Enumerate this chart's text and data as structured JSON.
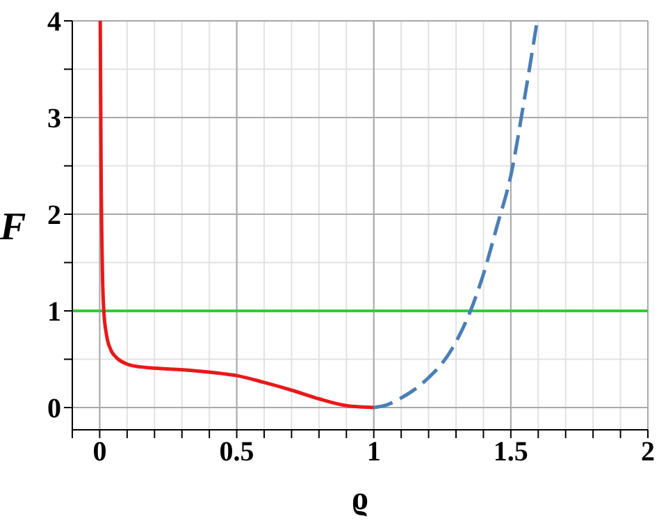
{
  "chart_data": {
    "type": "line",
    "xlabel": "ϱ",
    "ylabel": "F",
    "xlim": [
      -0.1,
      2
    ],
    "ylim": [
      -0.23,
      4
    ],
    "xticks": [
      {
        "value": -0.1,
        "label": null
      },
      0,
      {
        "value": 0.1,
        "label": null
      },
      {
        "value": 0.2,
        "label": null
      },
      {
        "value": 0.3,
        "label": null
      },
      {
        "value": 0.4,
        "label": null
      },
      0.5,
      {
        "value": 0.6,
        "label": null
      },
      {
        "value": 0.7,
        "label": null
      },
      {
        "value": 0.8,
        "label": null
      },
      {
        "value": 0.9,
        "label": null
      },
      1,
      {
        "value": 1.1,
        "label": null
      },
      {
        "value": 1.2,
        "label": null
      },
      {
        "value": 1.3,
        "label": null
      },
      {
        "value": 1.4,
        "label": null
      },
      1.5,
      {
        "value": 1.6,
        "label": null
      },
      {
        "value": 1.7,
        "label": null
      },
      {
        "value": 1.8,
        "label": null
      },
      {
        "value": 1.9,
        "label": null
      },
      2
    ],
    "yticks": [
      0,
      {
        "value": 0.5,
        "label": null
      },
      1,
      {
        "value": 1.5,
        "label": null
      },
      2,
      {
        "value": 2.5,
        "label": null
      },
      3,
      {
        "value": 3.5,
        "label": null
      },
      4
    ],
    "grid": true,
    "marker": "none",
    "series": [
      {
        "color": "#e8191a",
        "line_style": "solid",
        "x": [
          0.002,
          0.005,
          0.01,
          0.015,
          0.025,
          0.04,
          0.06,
          0.1,
          0.15,
          0.25,
          0.35,
          0.45,
          0.5,
          0.6,
          0.7,
          0.8,
          0.9,
          1
        ],
        "values": [
          4,
          2.5,
          1.4,
          1.0,
          0.75,
          0.6,
          0.52,
          0.45,
          0.42,
          0.4,
          0.38,
          0.35,
          0.33,
          0.26,
          0.18,
          0.09,
          0.02,
          0
        ]
      },
      {
        "color": "#4a7fb5",
        "line_style": "dashed",
        "x": [
          1,
          1.05,
          1.1,
          1.15,
          1.2,
          1.25,
          1.3,
          1.35,
          1.4,
          1.45,
          1.5,
          1.55,
          1.596
        ],
        "values": [
          0,
          0.03,
          0.1,
          0.19,
          0.31,
          0.46,
          0.68,
          0.98,
          1.38,
          1.88,
          2.4,
          3.2,
          4
        ]
      }
    ],
    "ref_lines": [
      {
        "axis": "y",
        "value": 1,
        "color": "#33cc33",
        "line_style": "solid"
      }
    ]
  }
}
